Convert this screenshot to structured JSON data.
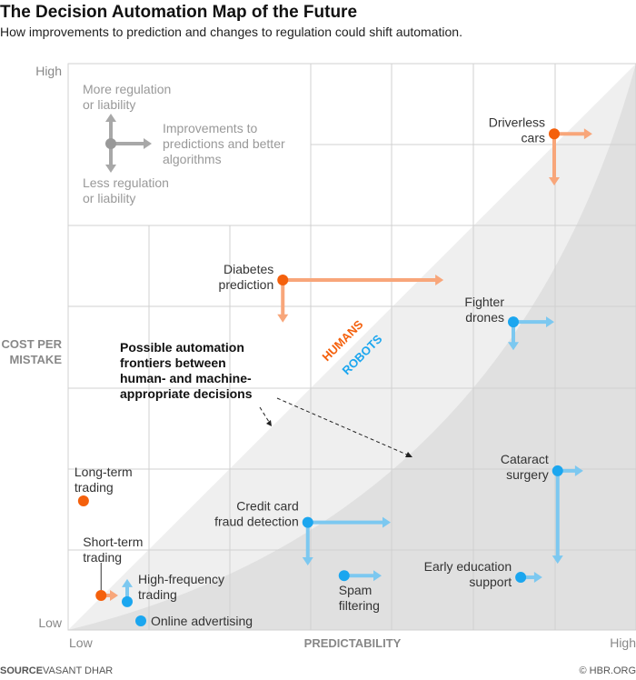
{
  "title": "The Decision Automation Map of the Future",
  "subtitle": "How improvements to prediction and changes to regulation could shift automation.",
  "source_label": "SOURCE",
  "source": "VASANT DHAR",
  "credit": "© HBR.ORG",
  "colors": {
    "humans": "#f4600c",
    "robots": "#1ba6ef",
    "humans_arrow": "#f8a67a",
    "robots_arrow": "#7cc8f0",
    "legend": "#a8a8a8"
  },
  "legend": {
    "up": [
      "More regulation",
      "or liability"
    ],
    "down": [
      "Less regulation",
      "or liability"
    ],
    "right": [
      "Improvements to",
      "predictions and better",
      "algorithms"
    ]
  },
  "annotation": [
    "Possible automation",
    "frontiers between",
    "human- and machine-",
    "appropriate decisions"
  ],
  "region_labels": {
    "humans": "HUMANS",
    "robots": "ROBOTS"
  },
  "chart_data": {
    "type": "scatter",
    "xlabel": "PREDICTABILITY",
    "ylabel": [
      "COST PER",
      "MISTAKE"
    ],
    "x_ticks": [
      "Low",
      "High"
    ],
    "y_ticks": [
      "Low",
      "High"
    ],
    "xlim": [
      0,
      100
    ],
    "ylim": [
      0,
      100
    ],
    "grid": true,
    "points": [
      {
        "label": [
          "Driverless",
          "cars"
        ],
        "group": "humans",
        "x": 85.6,
        "y": 87.6,
        "x_to": 92.3,
        "y_to": 78.5
      },
      {
        "label": [
          "Diabetes",
          "prediction"
        ],
        "group": "humans",
        "x": 37.8,
        "y": 61.8,
        "x_to": 66.1,
        "y_to": 54.3
      },
      {
        "label": [
          "Fighter",
          "drones"
        ],
        "group": "robots",
        "x": 78.4,
        "y": 54.4,
        "x_to": 85.6,
        "y_to": 49.4
      },
      {
        "label": [
          "Cataract",
          "surgery"
        ],
        "group": "robots",
        "x": 86.2,
        "y": 28.1,
        "x_to": 90.7,
        "y_to": 11.7
      },
      {
        "label": [
          "Credit card",
          "fraud detection"
        ],
        "group": "robots",
        "x": 42.2,
        "y": 19.0,
        "x_to": 56.8,
        "y_to": 11.4
      },
      {
        "label": [
          "Spam",
          "filtering"
        ],
        "group": "robots",
        "x": 48.6,
        "y": 9.6,
        "x_to": 55.2
      },
      {
        "label": [
          "Early education",
          "support"
        ],
        "group": "robots",
        "x": 79.7,
        "y": 9.3,
        "x_to": 83.5
      },
      {
        "label": [
          "Long-term",
          "trading"
        ],
        "group": "humans",
        "x": 2.7,
        "y": 22.8
      },
      {
        "label": [
          "Short-term",
          "trading"
        ],
        "group": "humans",
        "x": 5.8,
        "y": 6.1,
        "x_to": 8.8
      },
      {
        "label": [
          "High-frequency",
          "trading"
        ],
        "group": "robots",
        "x": 10.4,
        "y": 5.0,
        "y_to": 9.0
      },
      {
        "label": [
          "Online advertising"
        ],
        "group": "robots",
        "x": 12.8,
        "y": 1.6
      }
    ]
  }
}
